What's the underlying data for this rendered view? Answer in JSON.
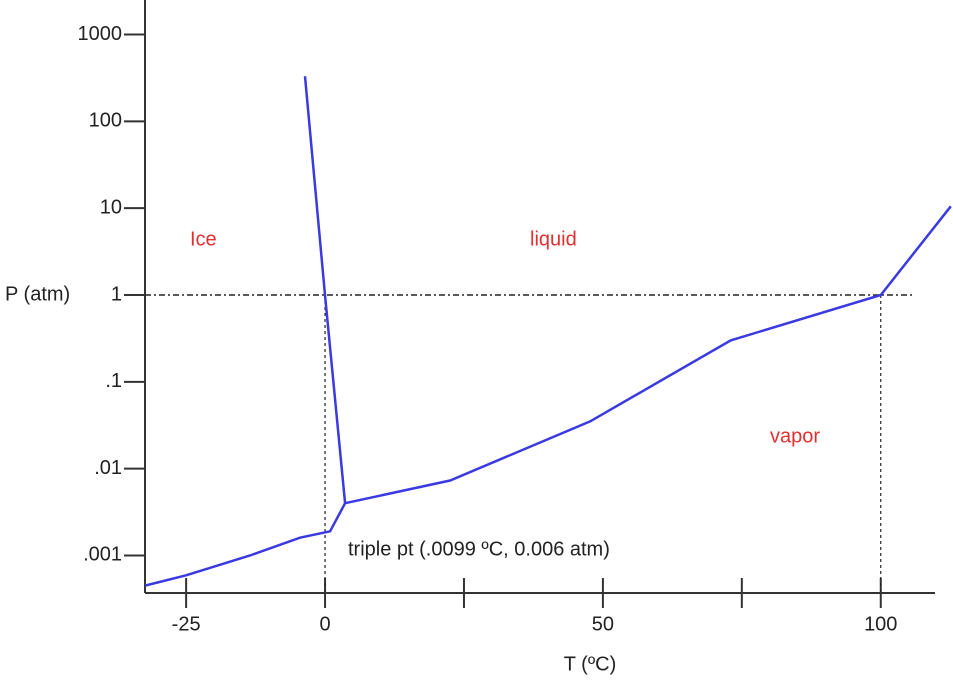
{
  "chart_data": {
    "type": "line",
    "x_label": "T (ºC)",
    "y_label": "P (atm)",
    "xlim": [
      -32.4,
      113
    ],
    "ylim": [
      0.0004,
      2500
    ],
    "ylog": true,
    "xticks": [
      -25,
      0,
      50,
      100
    ],
    "xminorticks": [
      25,
      75
    ],
    "yticks": [
      1000,
      100,
      10,
      1,
      {
        "value": 0.1,
        "label": ".1"
      },
      {
        "value": 0.01,
        "label": ".01"
      },
      {
        "value": 0.001,
        "label": ".001"
      }
    ],
    "lines": [
      {
        "color": "#3a3ae0",
        "x": [
          -32.4,
          -25,
          -13.5,
          -4.5,
          0.9,
          3.6,
          22.5,
          47.7,
          73,
          100,
          112.6
        ],
        "values": [
          0.00045,
          0.00059,
          0.001,
          0.0016,
          0.0019,
          0.004,
          0.0073,
          0.035,
          0.3,
          1,
          10.5
        ]
      },
      {
        "color": "#3a3ae0",
        "x": [
          -3.6,
          0,
          3.6
        ],
        "values": [
          330,
          1,
          0.004
        ]
      }
    ],
    "reference": {
      "y": 1,
      "x": [
        0,
        100
      ]
    },
    "annotations": {
      "ice": "Ice",
      "liquid": "liquid",
      "vapor": "vapor",
      "triple": "triple pt (.0099 ºC, 0.006 atm)"
    }
  }
}
